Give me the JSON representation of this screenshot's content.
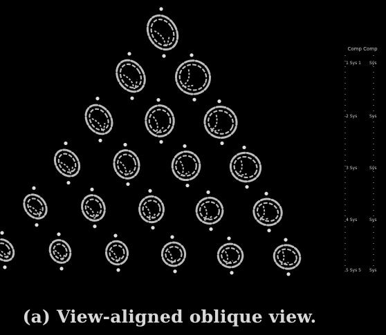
{
  "caption": "(a) View-aligned oblique view.",
  "axis_panel": {
    "title": "Comp Comp",
    "rows": [
      {
        "left": "1 Sys 1",
        "right": "Sys"
      },
      {
        "left": "2 Sys",
        "right": "Sys"
      },
      {
        "left": "3 Sys",
        "right": "Sys"
      },
      {
        "left": "4 Sys",
        "right": "Sys"
      },
      {
        "left": "5 Sys 5",
        "right": "Sys"
      }
    ]
  },
  "pyramid": {
    "rows": 6,
    "glyph_color": "#bdbdbd",
    "node_color": "#e0e0e0"
  }
}
